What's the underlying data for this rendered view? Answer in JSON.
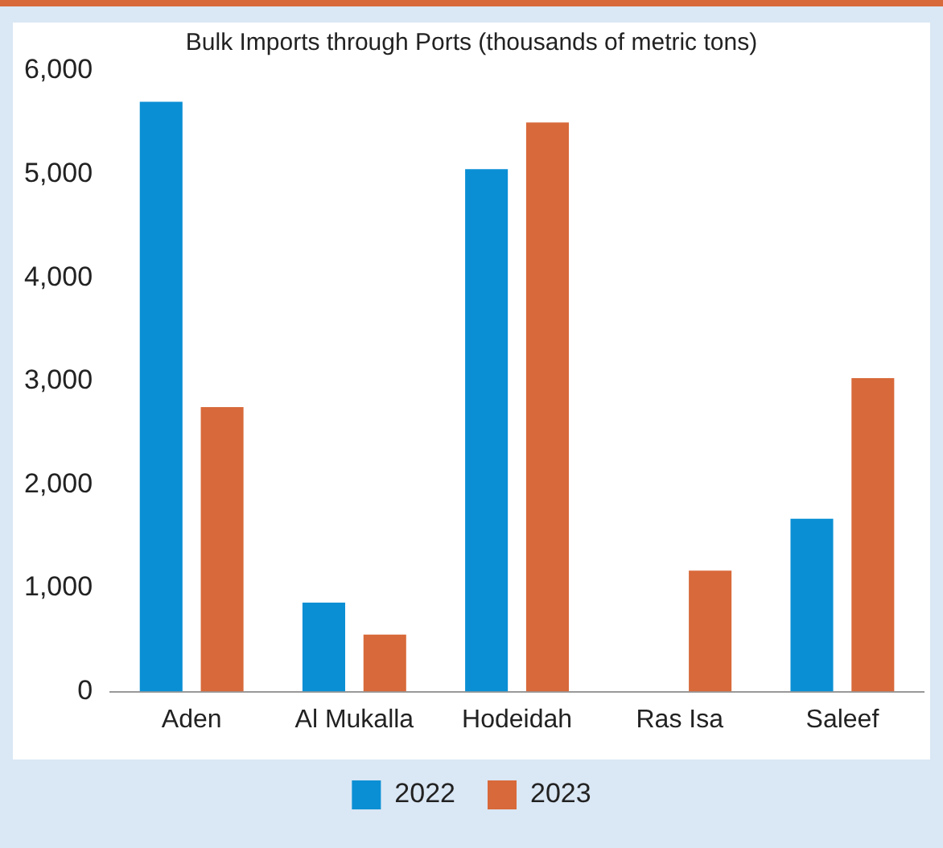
{
  "chart_data": {
    "type": "bar",
    "title": "Bulk Imports through Ports (thousands of metric tons)",
    "categories": [
      "Aden",
      "Al Mukalla",
      "Hodeidah",
      "Ras Isa",
      "Saleef"
    ],
    "series": [
      {
        "name": "2022",
        "color": "#0a8fd4",
        "values": [
          5700,
          860,
          5050,
          null,
          1670
        ]
      },
      {
        "name": "2023",
        "color": "#d8693a",
        "values": [
          2750,
          550,
          5500,
          1170,
          3030
        ]
      }
    ],
    "ylim": [
      0,
      6000
    ],
    "yticks": [
      0,
      {
        "value": 1000,
        "label": "1,000"
      },
      {
        "value": 2000,
        "label": "2,000"
      },
      {
        "value": 3000,
        "label": "3,000"
      },
      {
        "value": 4000,
        "label": "4,000"
      },
      {
        "value": 5000,
        "label": "5,000"
      },
      {
        "value": 6000,
        "label": "6,000"
      }
    ],
    "grid": false,
    "legend": "bottom"
  }
}
